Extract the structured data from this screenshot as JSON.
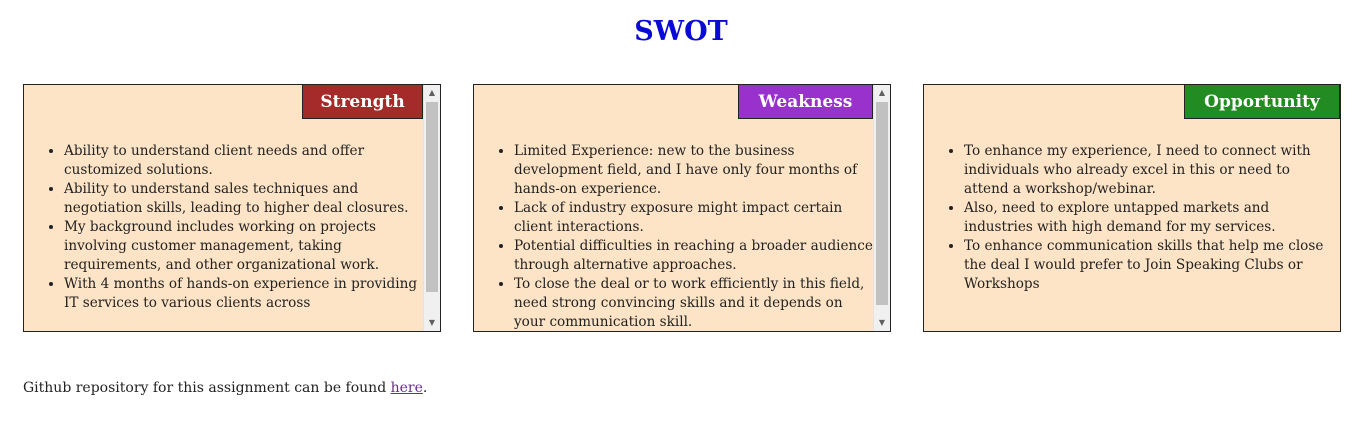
{
  "title": "SWOT",
  "cards": [
    {
      "heading": "Strength",
      "color": "#a52a2a",
      "items": [
        "Ability to understand client needs and offer customized solutions.",
        "Ability to understand sales techniques and negotiation skills, leading to higher deal closures.",
        "My background includes working on projects involving customer management, taking requirements, and other organizational work.",
        "With 4 months of hands-on experience in providing IT services to various clients across"
      ]
    },
    {
      "heading": "Weakness",
      "color": "#9932cc",
      "items": [
        "Limited Experience: new to the business development field, and I have only four months of hands-on experience.",
        "Lack of industry exposure might impact certain client interactions.",
        "Potential difficulties in reaching a broader audience through alternative approaches.",
        "To close the deal or to work efficiently in this field, need strong convincing skills and it depends on your communication skill."
      ]
    },
    {
      "heading": "Opportunity",
      "color": "#228b22",
      "items": [
        "To enhance my experience, I need to connect with individuals who already excel in this or need to attend a workshop/webinar.",
        "Also, need to explore untapped markets and industries with high demand for my services.",
        "To enhance communication skills that help me close the deal I would prefer to Join Speaking Clubs or Workshops"
      ]
    }
  ],
  "footer": {
    "text": "Github repository for this assignment can be found ",
    "link_text": "here",
    "suffix": "."
  },
  "colors": {
    "title": "#0a0ad6",
    "card_background": "#fde4c6",
    "link": "#6a2b8f"
  },
  "icons": {
    "scroll_up": "scroll-up-arrow-icon",
    "scroll_down": "scroll-down-arrow-icon"
  }
}
